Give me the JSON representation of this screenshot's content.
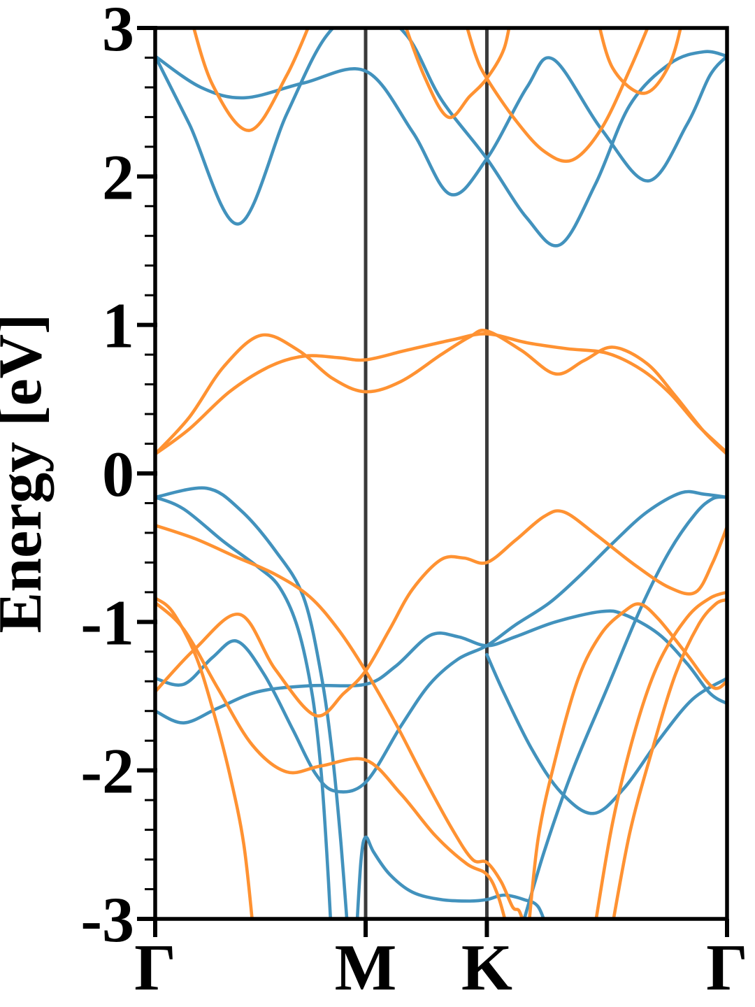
{
  "chart_data": {
    "type": "line",
    "title": "",
    "xlabel": "",
    "ylabel": "Energy [eV]",
    "ylim": [
      -3,
      3
    ],
    "y_major_ticks": [
      3,
      2,
      1,
      0,
      -1,
      -2,
      -3
    ],
    "y_tick_labels": [
      "3",
      "2",
      "1",
      "0",
      "-1",
      "-2",
      "-3"
    ],
    "y_minor_step": 0.2,
    "x_axis": "normalized wave-vector path",
    "xticks": {
      "labels": [
        "Γ",
        "M",
        "K",
        "Γ"
      ],
      "positions": [
        0,
        0.368,
        0.58,
        1
      ]
    },
    "vertical_gridlines_at": [
      0.368,
      0.58
    ],
    "grid_color": "#3a3a3a",
    "axis_color": "#000000",
    "legend": null,
    "series": [
      {
        "name": "bands-blue",
        "color": "#4292BD",
        "bands": [
          [
            [
              0,
              2.81
            ],
            [
              0.08,
              2.6
            ],
            [
              0.157,
              2.53
            ],
            [
              0.26,
              2.63
            ],
            [
              0.368,
              2.71
            ],
            [
              0.45,
              2.3
            ],
            [
              0.516,
              1.88
            ],
            [
              0.58,
              2.12
            ],
            [
              0.65,
              2.6
            ],
            [
              0.696,
              2.79
            ],
            [
              0.78,
              2.32
            ],
            [
              0.862,
              1.97
            ],
            [
              0.93,
              2.35
            ],
            [
              0.97,
              2.68
            ],
            [
              1,
              2.81
            ]
          ],
          [
            [
              0,
              2.81
            ],
            [
              0.06,
              2.35
            ],
            [
              0.145,
              1.68
            ],
            [
              0.23,
              2.42
            ],
            [
              0.3,
              2.95
            ],
            [
              0.37,
              3.12
            ],
            [
              0.44,
              2.95
            ],
            [
              0.5,
              2.52
            ],
            [
              0.58,
              2.12
            ],
            [
              0.65,
              1.72
            ],
            [
              0.708,
              1.54
            ],
            [
              0.77,
              1.95
            ],
            [
              0.83,
              2.48
            ],
            [
              0.9,
              2.76
            ],
            [
              0.96,
              2.84
            ],
            [
              1,
              2.81
            ]
          ],
          [
            [
              0,
              -0.16
            ],
            [
              0.09,
              -0.1
            ],
            [
              0.15,
              -0.25
            ],
            [
              0.21,
              -0.52
            ],
            [
              0.259,
              -0.83
            ],
            [
              0.29,
              -1.35
            ],
            [
              0.31,
              -1.9
            ],
            [
              0.325,
              -2.5
            ],
            [
              0.337,
              -3.1
            ]
          ],
          [
            [
              0,
              -0.16
            ],
            [
              0.05,
              -0.24
            ],
            [
              0.12,
              -0.46
            ],
            [
              0.18,
              -0.63
            ],
            [
              0.218,
              -0.77
            ],
            [
              0.25,
              -1.05
            ],
            [
              0.275,
              -1.5
            ],
            [
              0.29,
              -2.0
            ],
            [
              0.3,
              -2.55
            ],
            [
              0.308,
              -3.1
            ]
          ],
          [
            [
              0,
              -1.38
            ],
            [
              0.05,
              -1.42
            ],
            [
              0.1,
              -1.24
            ],
            [
              0.143,
              -1.13
            ],
            [
              0.19,
              -1.35
            ],
            [
              0.24,
              -1.72
            ],
            [
              0.28,
              -2.02
            ],
            [
              0.315,
              -2.14
            ],
            [
              0.368,
              -2.08
            ],
            [
              0.43,
              -1.7
            ],
            [
              0.48,
              -1.42
            ],
            [
              0.53,
              -1.25
            ],
            [
              0.58,
              -1.16
            ],
            [
              0.63,
              -1.02
            ],
            [
              0.69,
              -0.87
            ],
            [
              0.745,
              -0.68
            ],
            [
              0.8,
              -0.47
            ],
            [
              0.86,
              -0.26
            ],
            [
              0.92,
              -0.13
            ],
            [
              0.96,
              -0.14
            ],
            [
              1,
              -0.16
            ]
          ],
          [
            [
              0,
              -1.6
            ],
            [
              0.05,
              -1.68
            ],
            [
              0.11,
              -1.58
            ],
            [
              0.18,
              -1.47
            ],
            [
              0.27,
              -1.43
            ],
            [
              0.368,
              -1.42
            ],
            [
              0.42,
              -1.3
            ],
            [
              0.481,
              -1.09
            ],
            [
              0.53,
              -1.1
            ],
            [
              0.58,
              -1.16
            ],
            [
              0.63,
              -1.1
            ],
            [
              0.7,
              -1.0
            ],
            [
              0.78,
              -0.93
            ],
            [
              0.82,
              -0.95
            ],
            [
              0.88,
              -1.08
            ],
            [
              0.93,
              -1.28
            ],
            [
              0.97,
              -1.48
            ],
            [
              1,
              -1.55
            ]
          ],
          [
            [
              0.352,
              -3.1
            ],
            [
              0.36,
              -2.6
            ],
            [
              0.368,
              -2.45
            ],
            [
              0.382,
              -2.55
            ],
            [
              0.41,
              -2.7
            ],
            [
              0.45,
              -2.82
            ],
            [
              0.5,
              -2.87
            ],
            [
              0.55,
              -2.88
            ],
            [
              0.58,
              -2.87
            ],
            [
              0.61,
              -2.84
            ],
            [
              0.645,
              -2.87
            ],
            [
              0.67,
              -2.92
            ],
            [
              0.688,
              -3.1
            ]
          ],
          [
            [
              0.58,
              -1.22
            ],
            [
              0.61,
              -1.48
            ],
            [
              0.659,
              -1.86
            ],
            [
              0.71,
              -2.15
            ],
            [
              0.766,
              -2.29
            ],
            [
              0.82,
              -2.12
            ],
            [
              0.88,
              -1.8
            ],
            [
              0.94,
              -1.52
            ],
            [
              1,
              -1.38
            ]
          ],
          [
            [
              0.638,
              -3.1
            ],
            [
              0.68,
              -2.55
            ],
            [
              0.73,
              -2.0
            ],
            [
              0.79,
              -1.45
            ],
            [
              0.85,
              -0.9
            ],
            [
              0.9,
              -0.52
            ],
            [
              0.945,
              -0.27
            ],
            [
              0.975,
              -0.17
            ],
            [
              1,
              -0.16
            ]
          ]
        ]
      },
      {
        "name": "bands-orange",
        "color": "#FF9232",
        "bands": [
          [
            [
              0,
              0.13
            ],
            [
              0.06,
              0.38
            ],
            [
              0.12,
              0.72
            ],
            [
              0.185,
              0.93
            ],
            [
              0.25,
              0.83
            ],
            [
              0.31,
              0.64
            ],
            [
              0.368,
              0.55
            ],
            [
              0.43,
              0.62
            ],
            [
              0.5,
              0.8
            ],
            [
              0.55,
              0.92
            ],
            [
              0.58,
              0.96
            ],
            [
              0.64,
              0.83
            ],
            [
              0.7,
              0.67
            ],
            [
              0.75,
              0.76
            ],
            [
              0.8,
              0.85
            ],
            [
              0.86,
              0.74
            ],
            [
              0.91,
              0.52
            ],
            [
              0.96,
              0.28
            ],
            [
              1,
              0.13
            ]
          ],
          [
            [
              0,
              0.13
            ],
            [
              0.06,
              0.3
            ],
            [
              0.13,
              0.55
            ],
            [
              0.2,
              0.72
            ],
            [
              0.26,
              0.79
            ],
            [
              0.32,
              0.78
            ],
            [
              0.368,
              0.765
            ],
            [
              0.44,
              0.83
            ],
            [
              0.52,
              0.9
            ],
            [
              0.58,
              0.94
            ],
            [
              0.65,
              0.88
            ],
            [
              0.72,
              0.84
            ],
            [
              0.79,
              0.81
            ],
            [
              0.85,
              0.7
            ],
            [
              0.9,
              0.54
            ],
            [
              0.95,
              0.32
            ],
            [
              1,
              0.14
            ]
          ],
          [
            [
              0,
              -0.35
            ],
            [
              0.07,
              -0.44
            ],
            [
              0.14,
              -0.56
            ],
            [
              0.21,
              -0.68
            ],
            [
              0.27,
              -0.83
            ],
            [
              0.32,
              -1.05
            ],
            [
              0.368,
              -1.33
            ],
            [
              0.42,
              -1.68
            ],
            [
              0.47,
              -2.05
            ],
            [
              0.52,
              -2.4
            ],
            [
              0.555,
              -2.6
            ],
            [
              0.58,
              -2.62
            ],
            [
              0.605,
              -2.75
            ],
            [
              0.625,
              -2.92
            ],
            [
              0.637,
              -2.95
            ],
            [
              0.65,
              -3.1
            ]
          ],
          [
            [
              0,
              -0.84
            ],
            [
              0.03,
              -0.93
            ],
            [
              0.07,
              -1.22
            ],
            [
              0.1,
              -1.58
            ],
            [
              0.13,
              -2.02
            ],
            [
              0.155,
              -2.5
            ],
            [
              0.172,
              -3.1
            ]
          ],
          [
            [
              0,
              -0.87
            ],
            [
              0.05,
              -1.05
            ],
            [
              0.11,
              -1.45
            ],
            [
              0.17,
              -1.83
            ],
            [
              0.23,
              -2.01
            ],
            [
              0.29,
              -1.97
            ],
            [
              0.368,
              -1.93
            ],
            [
              0.43,
              -2.16
            ],
            [
              0.49,
              -2.44
            ],
            [
              0.545,
              -2.63
            ],
            [
              0.58,
              -2.7
            ],
            [
              0.6,
              -2.85
            ],
            [
              0.618,
              -3.1
            ]
          ],
          [
            [
              0,
              -1.47
            ],
            [
              0.07,
              -1.18
            ],
            [
              0.148,
              -0.95
            ],
            [
              0.21,
              -1.32
            ],
            [
              0.28,
              -1.63
            ],
            [
              0.33,
              -1.48
            ],
            [
              0.368,
              -1.33
            ],
            [
              0.41,
              -1.05
            ],
            [
              0.45,
              -0.78
            ],
            [
              0.5,
              -0.58
            ],
            [
              0.54,
              -0.57
            ],
            [
              0.58,
              -0.6
            ],
            [
              0.63,
              -0.45
            ],
            [
              0.68,
              -0.29
            ],
            [
              0.715,
              -0.26
            ],
            [
              0.77,
              -0.41
            ],
            [
              0.84,
              -0.62
            ],
            [
              0.9,
              -0.77
            ],
            [
              0.945,
              -0.8
            ],
            [
              0.975,
              -0.6
            ],
            [
              1,
              -0.36
            ]
          ],
          [
            [
              0.652,
              -3.1
            ],
            [
              0.67,
              -2.45
            ],
            [
              0.7,
              -1.92
            ],
            [
              0.74,
              -1.38
            ],
            [
              0.78,
              -1.08
            ],
            [
              0.82,
              -0.93
            ],
            [
              0.848,
              -0.88
            ],
            [
              0.88,
              -0.98
            ],
            [
              0.93,
              -1.22
            ],
            [
              0.975,
              -1.44
            ],
            [
              1,
              -1.4
            ]
          ],
          [
            [
              0.767,
              -3.1
            ],
            [
              0.8,
              -2.35
            ],
            [
              0.84,
              -1.72
            ],
            [
              0.88,
              -1.28
            ],
            [
              0.93,
              -0.97
            ],
            [
              0.97,
              -0.84
            ],
            [
              1,
              -0.8
            ]
          ],
          [
            [
              0.797,
              -3.1
            ],
            [
              0.83,
              -2.42
            ],
            [
              0.87,
              -1.85
            ],
            [
              0.91,
              -1.35
            ],
            [
              0.95,
              -1.02
            ],
            [
              0.98,
              -0.88
            ],
            [
              1,
              -0.85
            ]
          ],
          [
            [
              0.059,
              3.12
            ],
            [
              0.1,
              2.62
            ],
            [
              0.165,
              2.31
            ],
            [
              0.23,
              2.68
            ],
            [
              0.28,
              3.12
            ]
          ],
          [
            [
              0.428,
              3.12
            ],
            [
              0.47,
              2.68
            ],
            [
              0.512,
              2.4
            ],
            [
              0.55,
              2.54
            ],
            [
              0.58,
              2.66
            ],
            [
              0.61,
              2.86
            ],
            [
              0.624,
              3.12
            ]
          ],
          [
            [
              0.537,
              3.12
            ],
            [
              0.56,
              2.82
            ],
            [
              0.58,
              2.66
            ],
            [
              0.63,
              2.38
            ],
            [
              0.68,
              2.17
            ],
            [
              0.729,
              2.11
            ],
            [
              0.78,
              2.32
            ],
            [
              0.83,
              2.72
            ],
            [
              0.874,
              3.12
            ]
          ],
          [
            [
              0.77,
              3.12
            ],
            [
              0.8,
              2.73
            ],
            [
              0.855,
              2.56
            ],
            [
              0.9,
              2.76
            ],
            [
              0.926,
              3.12
            ]
          ]
        ]
      }
    ]
  }
}
